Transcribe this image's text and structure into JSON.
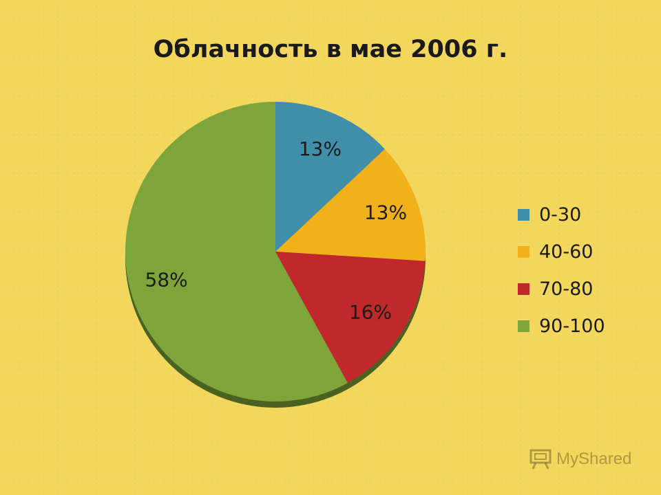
{
  "chart_data": {
    "type": "pie",
    "title": "Облачность в мае 2006 г.",
    "categories": [
      "0-30",
      "40-60",
      "70-80",
      "90-100"
    ],
    "values": [
      13,
      13,
      16,
      58
    ],
    "data_labels": [
      "13%",
      "13%",
      "16%",
      "58%"
    ],
    "colors": [
      "#3f8fab",
      "#f0b11a",
      "#c0282c",
      "#7ea53a"
    ],
    "legend_position": "right"
  },
  "watermark": {
    "text": "MyShared",
    "icon": "presentation-board-icon"
  }
}
